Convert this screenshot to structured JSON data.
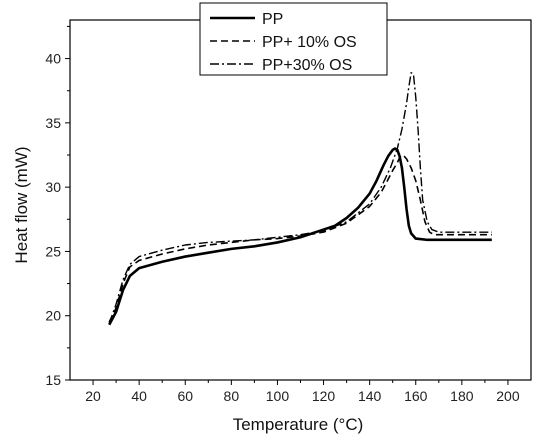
{
  "chart_data": {
    "type": "line",
    "title": "",
    "xlabel": "Temperature (°C)",
    "ylabel": "Heat flow (mW)",
    "xlim": [
      10,
      210
    ],
    "ylim": [
      15,
      43
    ],
    "x_ticks": [
      20,
      40,
      60,
      80,
      100,
      120,
      140,
      160,
      180,
      200
    ],
    "y_ticks": [
      15,
      20,
      25,
      30,
      35,
      40
    ],
    "grid": false,
    "legend_position": "top-center",
    "series": [
      {
        "name": "PP",
        "style": "solid",
        "color": "#000000",
        "points": [
          [
            27,
            19.3
          ],
          [
            30,
            20.3
          ],
          [
            33,
            22.0
          ],
          [
            36,
            23.1
          ],
          [
            40,
            23.7
          ],
          [
            50,
            24.2
          ],
          [
            60,
            24.6
          ],
          [
            70,
            24.9
          ],
          [
            80,
            25.2
          ],
          [
            90,
            25.4
          ],
          [
            100,
            25.7
          ],
          [
            110,
            26.1
          ],
          [
            120,
            26.7
          ],
          [
            125,
            27.0
          ],
          [
            130,
            27.6
          ],
          [
            135,
            28.4
          ],
          [
            140,
            29.5
          ],
          [
            143,
            30.5
          ],
          [
            146,
            31.7
          ],
          [
            148,
            32.4
          ],
          [
            150,
            32.9
          ],
          [
            151,
            33.0
          ],
          [
            152,
            32.9
          ],
          [
            153,
            32.4
          ],
          [
            154,
            31.5
          ],
          [
            155,
            30.0
          ],
          [
            156,
            28.3
          ],
          [
            157,
            27.0
          ],
          [
            158,
            26.4
          ],
          [
            160,
            26.0
          ],
          [
            165,
            25.9
          ],
          [
            170,
            25.9
          ],
          [
            180,
            25.9
          ],
          [
            193,
            25.9
          ]
        ]
      },
      {
        "name": "PP+ 10% OS",
        "style": "dashed",
        "color": "#000000",
        "points": [
          [
            27,
            19.5
          ],
          [
            30,
            20.6
          ],
          [
            33,
            22.5
          ],
          [
            36,
            23.8
          ],
          [
            40,
            24.3
          ],
          [
            50,
            24.8
          ],
          [
            60,
            25.2
          ],
          [
            70,
            25.5
          ],
          [
            80,
            25.7
          ],
          [
            90,
            25.9
          ],
          [
            100,
            26.0
          ],
          [
            110,
            26.2
          ],
          [
            120,
            26.5
          ],
          [
            130,
            27.2
          ],
          [
            140,
            28.5
          ],
          [
            145,
            29.6
          ],
          [
            148,
            30.6
          ],
          [
            150,
            31.3
          ],
          [
            152,
            31.9
          ],
          [
            153,
            32.3
          ],
          [
            154,
            32.5
          ],
          [
            155,
            32.4
          ],
          [
            156,
            32.2
          ],
          [
            158,
            31.5
          ],
          [
            160,
            30.5
          ],
          [
            162,
            29.0
          ],
          [
            164,
            27.3
          ],
          [
            166,
            26.5
          ],
          [
            168,
            26.3
          ],
          [
            175,
            26.3
          ],
          [
            185,
            26.3
          ],
          [
            193,
            26.3
          ]
        ]
      },
      {
        "name": "PP+30% OS",
        "style": "dashdot",
        "color": "#000000",
        "points": [
          [
            27,
            19.4
          ],
          [
            30,
            20.9
          ],
          [
            33,
            22.8
          ],
          [
            36,
            24.0
          ],
          [
            40,
            24.6
          ],
          [
            50,
            25.1
          ],
          [
            60,
            25.5
          ],
          [
            70,
            25.7
          ],
          [
            80,
            25.8
          ],
          [
            90,
            25.9
          ],
          [
            100,
            26.1
          ],
          [
            110,
            26.3
          ],
          [
            120,
            26.6
          ],
          [
            130,
            27.3
          ],
          [
            140,
            28.7
          ],
          [
            145,
            30.0
          ],
          [
            149,
            31.5
          ],
          [
            152,
            33.0
          ],
          [
            154,
            34.5
          ],
          [
            156,
            36.5
          ],
          [
            157,
            37.8
          ],
          [
            158,
            38.9
          ],
          [
            159,
            38.8
          ],
          [
            160,
            37.0
          ],
          [
            161,
            34.5
          ],
          [
            162,
            31.5
          ],
          [
            163,
            29.0
          ],
          [
            165,
            27.3
          ],
          [
            167,
            26.7
          ],
          [
            170,
            26.5
          ],
          [
            180,
            26.5
          ],
          [
            193,
            26.5
          ]
        ]
      }
    ]
  }
}
